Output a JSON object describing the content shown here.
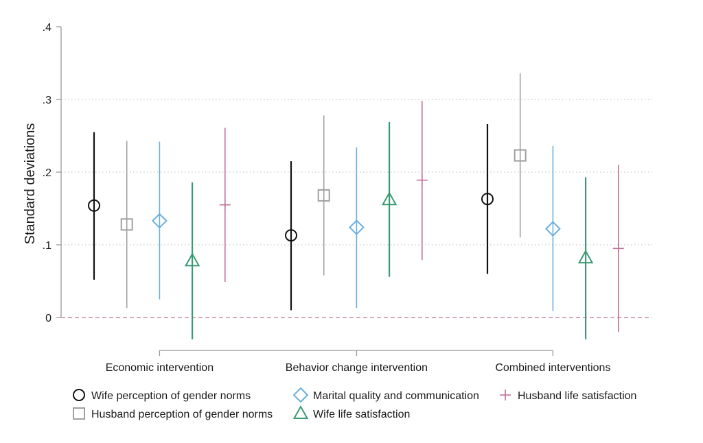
{
  "chart_data": {
    "type": "scatter",
    "subtype": "point-estimates-with-confidence-intervals",
    "title": "",
    "xlabel": "",
    "ylabel": "Standard deviations",
    "ylim": [
      0,
      0.4
    ],
    "yticks": [
      {
        "value": 0,
        "label": "0"
      },
      {
        "value": 0.1,
        "label": ".1"
      },
      {
        "value": 0.2,
        "label": ".2"
      },
      {
        "value": 0.3,
        "label": ".3"
      },
      {
        "value": 0.4,
        "label": ".4"
      }
    ],
    "grid": "horizontal dotted at .1, .2, .3",
    "reference_line": {
      "value": 0,
      "style": "dashed",
      "color": "#c0709a"
    },
    "categories": [
      "Economic intervention",
      "Behavior change intervention",
      "Combined interventions"
    ],
    "series": [
      {
        "name": "Wife perception of gender norms",
        "marker": "circle",
        "color": "#111111",
        "estimates": [
          0.154,
          0.113,
          0.163
        ],
        "ci_low": [
          0.052,
          0.01,
          0.06
        ],
        "ci_high": [
          0.255,
          0.215,
          0.266
        ]
      },
      {
        "name": "Husband perception of gender norms",
        "marker": "square",
        "color": "#a0a0a0",
        "estimates": [
          0.128,
          0.168,
          0.223
        ],
        "ci_low": [
          0.013,
          0.058,
          0.11
        ],
        "ci_high": [
          0.243,
          0.278,
          0.336
        ]
      },
      {
        "name": "Marital quality and communication",
        "marker": "diamond",
        "color": "#6aaee0",
        "estimates": [
          0.133,
          0.124,
          0.122
        ],
        "ci_low": [
          0.025,
          0.013,
          0.009
        ],
        "ci_high": [
          0.242,
          0.234,
          0.236
        ]
      },
      {
        "name": "Wife life satisfaction",
        "marker": "triangle",
        "color": "#3a9a72",
        "estimates": [
          0.078,
          0.162,
          0.082
        ],
        "ci_low": [
          -0.03,
          0.056,
          -0.03
        ],
        "ci_high": [
          0.186,
          0.269,
          0.193
        ]
      },
      {
        "name": "Husband life satisfaction",
        "marker": "plus",
        "color": "#c0709a",
        "estimates": [
          0.155,
          0.189,
          0.095
        ],
        "ci_low": [
          0.049,
          0.079,
          -0.02
        ],
        "ci_high": [
          0.261,
          0.298,
          0.21
        ]
      }
    ],
    "legend": {
      "position": "bottom",
      "columns": 3
    }
  }
}
